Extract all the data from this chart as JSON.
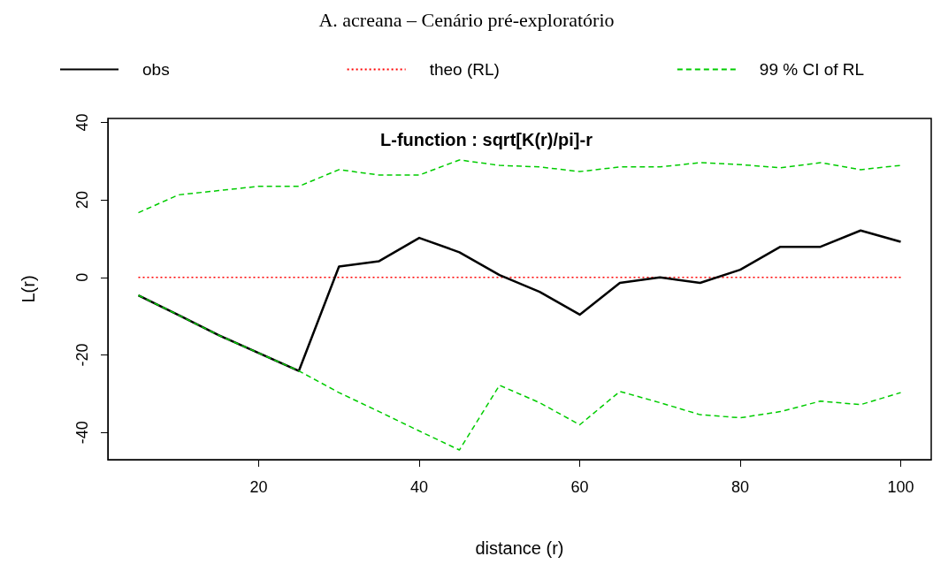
{
  "chart_data": {
    "type": "line",
    "title": "A. acreana – Cenário pré-exploratório",
    "xlabel": "distance (r)",
    "ylabel": "L(r)",
    "annotations": [
      "L-function : sqrt[K(r)/pi]-r"
    ],
    "x": [
      5,
      10,
      15,
      20,
      25,
      30,
      35,
      40,
      45,
      50,
      55,
      60,
      65,
      70,
      75,
      80,
      85,
      90,
      95,
      100
    ],
    "series": [
      {
        "name": "obs",
        "color": "#000000",
        "line_style": "solid",
        "values": [
          -4.6,
          -9.7,
          -14.9,
          -19.5,
          -24.1,
          2.8,
          4.2,
          10.2,
          6.5,
          0.6,
          -3.7,
          -9.6,
          -1.4,
          0,
          -1.4,
          2,
          7.9,
          7.9,
          12.1,
          9.2
        ]
      },
      {
        "name": "theo (RL)",
        "color": "#ff0000",
        "line_style": "dotted",
        "values": [
          0,
          0,
          0,
          0,
          0,
          0,
          0,
          0,
          0,
          0,
          0,
          0,
          0,
          0,
          0,
          0,
          0,
          0,
          0,
          0
        ]
      },
      {
        "name": "99 % CI of RL",
        "color": "#00cc00",
        "line_style": "dashed",
        "values": [
          16.7,
          21.3,
          22.4,
          23.5,
          23.5,
          27.8,
          26.4,
          26.4,
          30.3,
          28.9,
          28.5,
          27.3,
          28.5,
          28.5,
          29.6,
          29.1,
          28.3,
          29.6,
          27.8,
          28.9
        ]
      },
      {
        "color": "#00cc00",
        "line_style": "dashed",
        "values": [
          -4.6,
          -9.7,
          -14.9,
          -19.5,
          -24.1,
          -29.7,
          -34.6,
          -39.6,
          -44.5,
          -27.8,
          -32.3,
          -38,
          -29.4,
          -32.3,
          -35.4,
          -36.2,
          -34.6,
          -31.9,
          -32.8,
          -29.7
        ]
      }
    ],
    "xlim": [
      1.2,
      103.8
    ],
    "ylim": [
      -47,
      41
    ],
    "xticks": [
      20,
      40,
      60,
      80,
      100
    ],
    "yticks": [
      -40,
      -20,
      0,
      20,
      40
    ],
    "grid": false,
    "legend": "top",
    "marker": "none"
  }
}
